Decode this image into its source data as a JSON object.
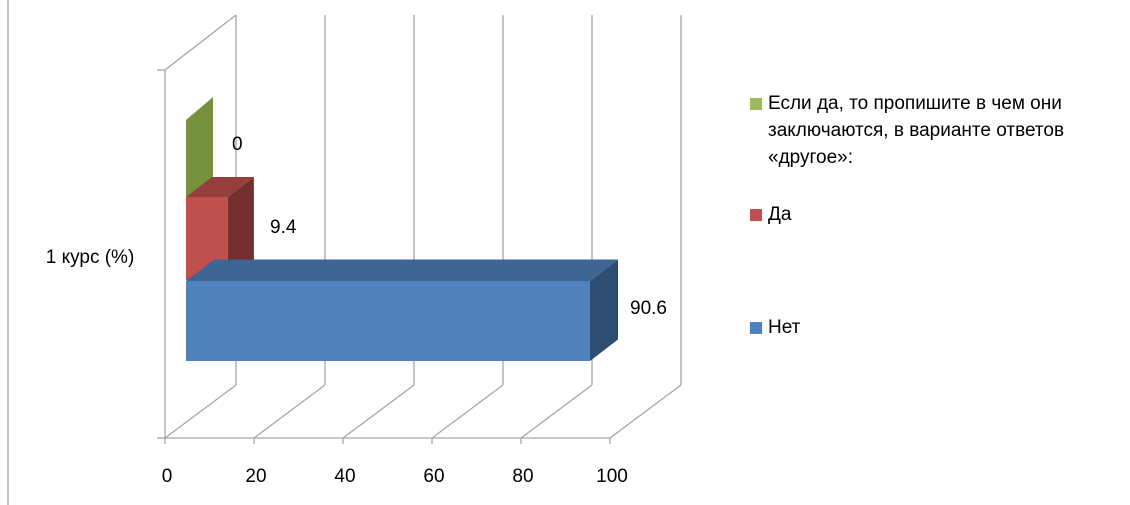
{
  "chart_data": {
    "type": "bar",
    "orientation": "horizontal",
    "three_d": true,
    "categories": [
      "1 курс (%)"
    ],
    "series": [
      {
        "name": "Нет",
        "values": [
          90.6
        ],
        "color": "#4F81BD"
      },
      {
        "name": "Да",
        "values": [
          9.4
        ],
        "color": "#C0504D"
      },
      {
        "name": "Если  да, то пропишите  в чем они заключаются, в варианте ответов «другое»:",
        "values": [
          0
        ],
        "color": "#9BBB59"
      }
    ],
    "data_labels": [
      "90.6",
      "9.4",
      "0"
    ],
    "x_ticks": [
      "0",
      "20",
      "40",
      "60",
      "80",
      "100"
    ],
    "xlim": [
      0,
      100
    ],
    "grid": true,
    "legend_position": "right"
  },
  "legend": {
    "items": [
      {
        "label": "Если  да, то пропишите  в чем они заключаются, в варианте ответов «другое»:",
        "color": "#9BBB59"
      },
      {
        "label": "Да",
        "color": "#C0504D"
      },
      {
        "label": "Нет",
        "color": "#4F81BD"
      }
    ]
  }
}
